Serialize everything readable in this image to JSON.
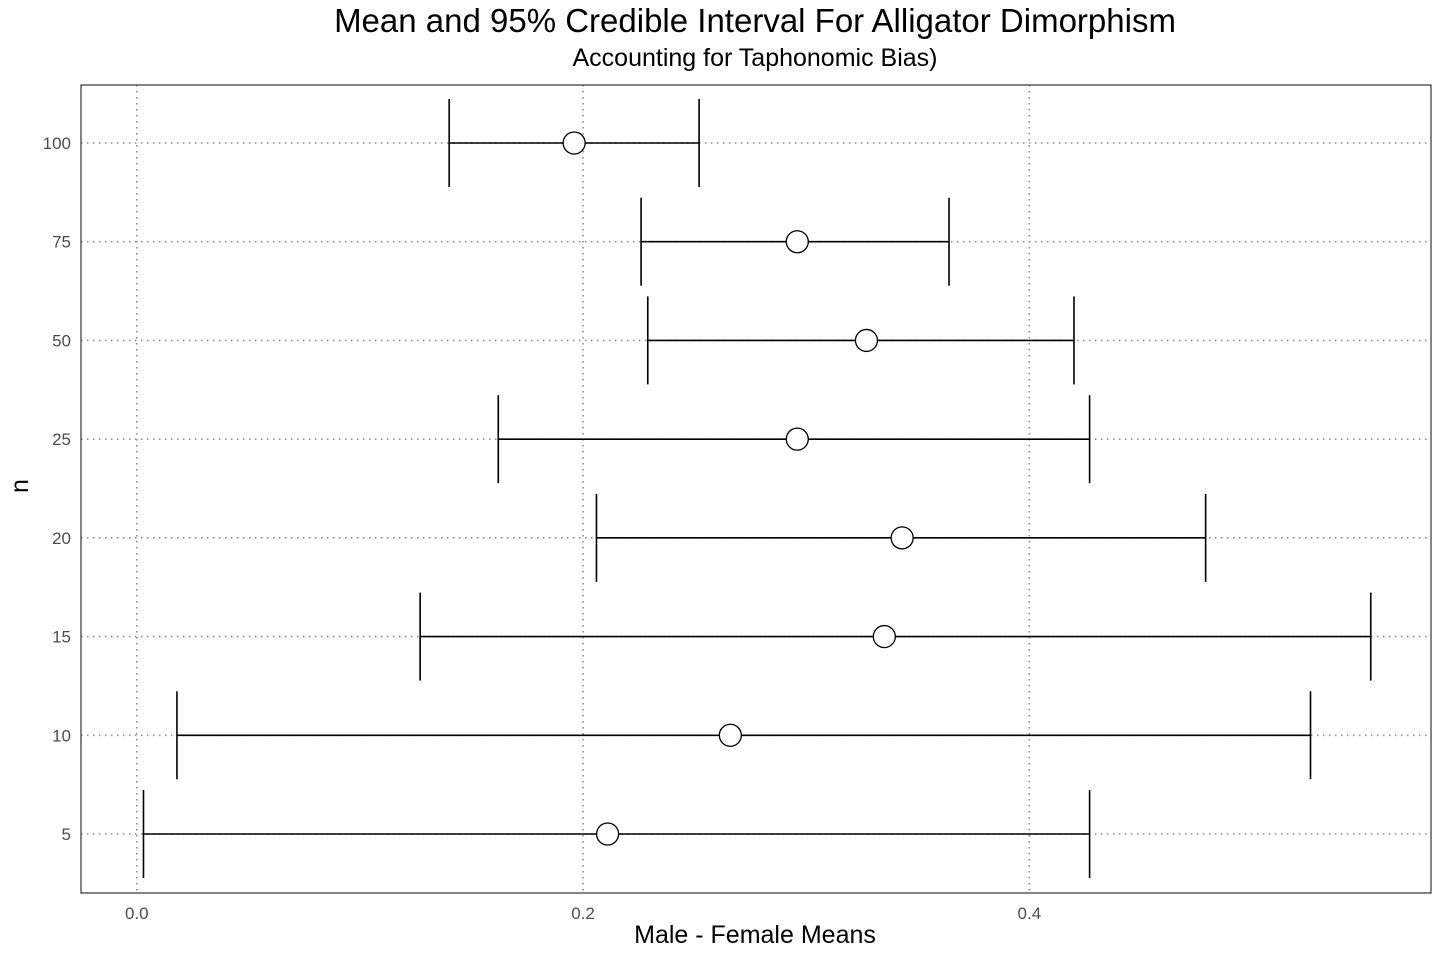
{
  "chart_data": {
    "type": "errorbar",
    "title": "Mean and 95% Credible Interval For Alligator Dimorphism",
    "subtitle": "Accounting for Taphonomic Bias)",
    "xlabel": "Male - Female Means",
    "ylabel": "n",
    "xlim": [
      -0.025,
      0.58
    ],
    "x_ticks": [
      0.0,
      0.2,
      0.4
    ],
    "x_tick_labels": [
      "0.0",
      "0.2",
      "0.4"
    ],
    "categories": [
      "5",
      "10",
      "15",
      "20",
      "25",
      "50",
      "75",
      "100"
    ],
    "points": [
      {
        "n": "5",
        "mean": 0.211,
        "lower": 0.003,
        "upper": 0.427
      },
      {
        "n": "10",
        "mean": 0.266,
        "lower": 0.018,
        "upper": 0.526
      },
      {
        "n": "15",
        "mean": 0.335,
        "lower": 0.127,
        "upper": 0.553
      },
      {
        "n": "20",
        "mean": 0.343,
        "lower": 0.206,
        "upper": 0.479
      },
      {
        "n": "25",
        "mean": 0.296,
        "lower": 0.162,
        "upper": 0.427
      },
      {
        "n": "50",
        "mean": 0.327,
        "lower": 0.229,
        "upper": 0.42
      },
      {
        "n": "75",
        "mean": 0.296,
        "lower": 0.226,
        "upper": 0.364
      },
      {
        "n": "100",
        "mean": 0.196,
        "lower": 0.14,
        "upper": 0.252
      }
    ],
    "grid": "dotted",
    "legend": "none",
    "colors": {
      "line": "#000000",
      "marker_fill": "#ffffff",
      "grid": "#8c8c8c",
      "axis_text": "#4d4d4d",
      "frame": "#333333"
    }
  }
}
